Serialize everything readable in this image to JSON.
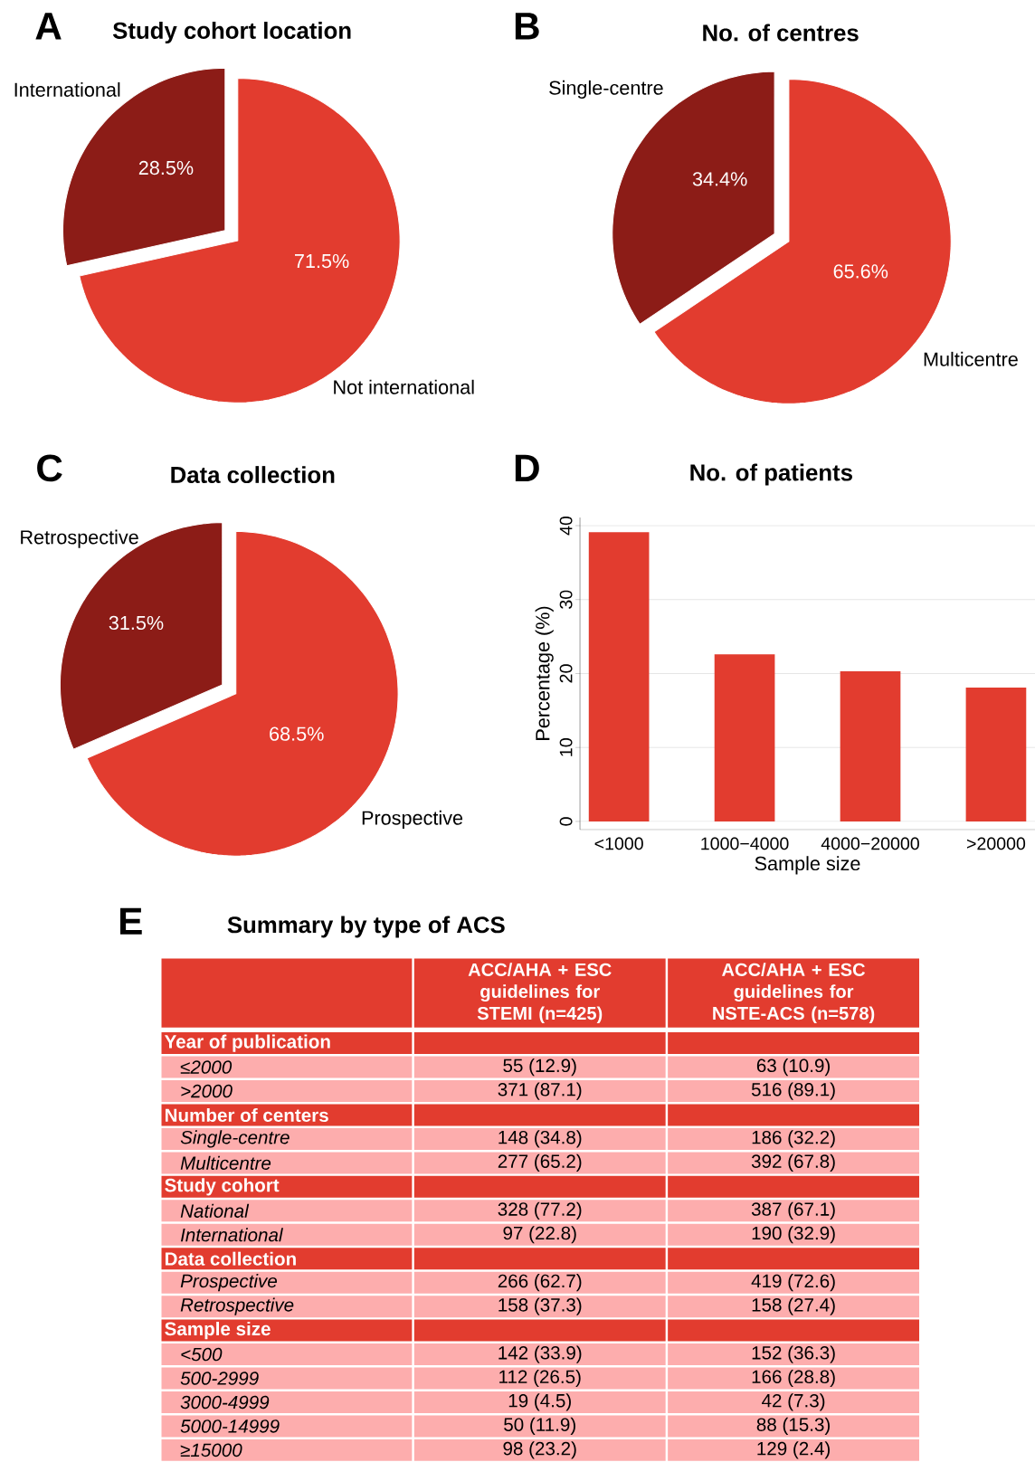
{
  "chart_data": [
    {
      "type": "pie",
      "title": "Study cohort location",
      "annotations": [
        "A"
      ],
      "categories": [
        "International",
        "Not international"
      ],
      "values": [
        28.5,
        71.5
      ],
      "value_labels": [
        "28.5%",
        "71.5%"
      ],
      "colors": [
        "#8c1c17",
        "#e23c2f"
      ]
    },
    {
      "type": "pie",
      "title": "No. of centres",
      "annotations": [
        "B"
      ],
      "categories": [
        "Single-centre",
        "Multicentre"
      ],
      "values": [
        34.4,
        65.6
      ],
      "value_labels": [
        "34.4%",
        "65.6%"
      ],
      "colors": [
        "#8c1c17",
        "#e23c2f"
      ]
    },
    {
      "type": "pie",
      "title": "Data collection",
      "annotations": [
        "C"
      ],
      "categories": [
        "Retrospective",
        "Prospective"
      ],
      "values": [
        31.5,
        68.5
      ],
      "value_labels": [
        "31.5%",
        "68.5%"
      ],
      "colors": [
        "#8c1c17",
        "#e23c2f"
      ]
    },
    {
      "type": "bar",
      "title": "No. of patients",
      "annotations": [
        "D"
      ],
      "categories": [
        "<1000",
        "1000−4000",
        "4000−20000",
        ">20000"
      ],
      "values": [
        39.1,
        22.6,
        20.3,
        18.1
      ],
      "color": "#e23c2f",
      "xlabel": "Sample size",
      "ylabel": "Percentage (%)",
      "ylim": [
        -1.1,
        41.1
      ],
      "yticks": [
        0,
        10,
        20,
        30,
        40
      ],
      "grid": "y"
    },
    {
      "type": "other",
      "title": "Summary by type of ACS",
      "categories": [
        "Year of publication",
        "≤2000",
        ">2000",
        "Number of centers",
        "Single-centre",
        "Multicentre",
        "Study cohort",
        "National",
        "International",
        "Data collection",
        "Prospective",
        "Retrospective",
        "Sample size",
        "<500",
        "500-2999",
        "3000-4999",
        "5000-14999",
        "≥15000"
      ],
      "annotations": [
        "E",
        "ACC/AHA + ESC guidelines for STEMI (n=425)",
        "ACC/AHA + ESC guidelines for NSTE-ACS (n=578)",
        "55 (12.9)",
        "63 (10.9)",
        "371 (87.1)",
        "516 (89.1)",
        "148 (34.8)",
        "186 (32.2)",
        "277 (65.2)",
        "392 (67.8)",
        "328 (77.2)",
        "387 (67.1)",
        "97 (22.8)",
        "190 (32.9)",
        "266 (62.7)",
        "419 (72.6)",
        "158 (37.3)",
        "158 (27.4)",
        "142 (33.9)",
        "152 (36.3)",
        "112 (26.5)",
        "166 (28.8)",
        "19 (4.5)",
        "42 (7.3)",
        "50 (11.9)",
        "88 (15.3)",
        "98 (23.2)",
        "129 (2.4)"
      ]
    }
  ]
}
